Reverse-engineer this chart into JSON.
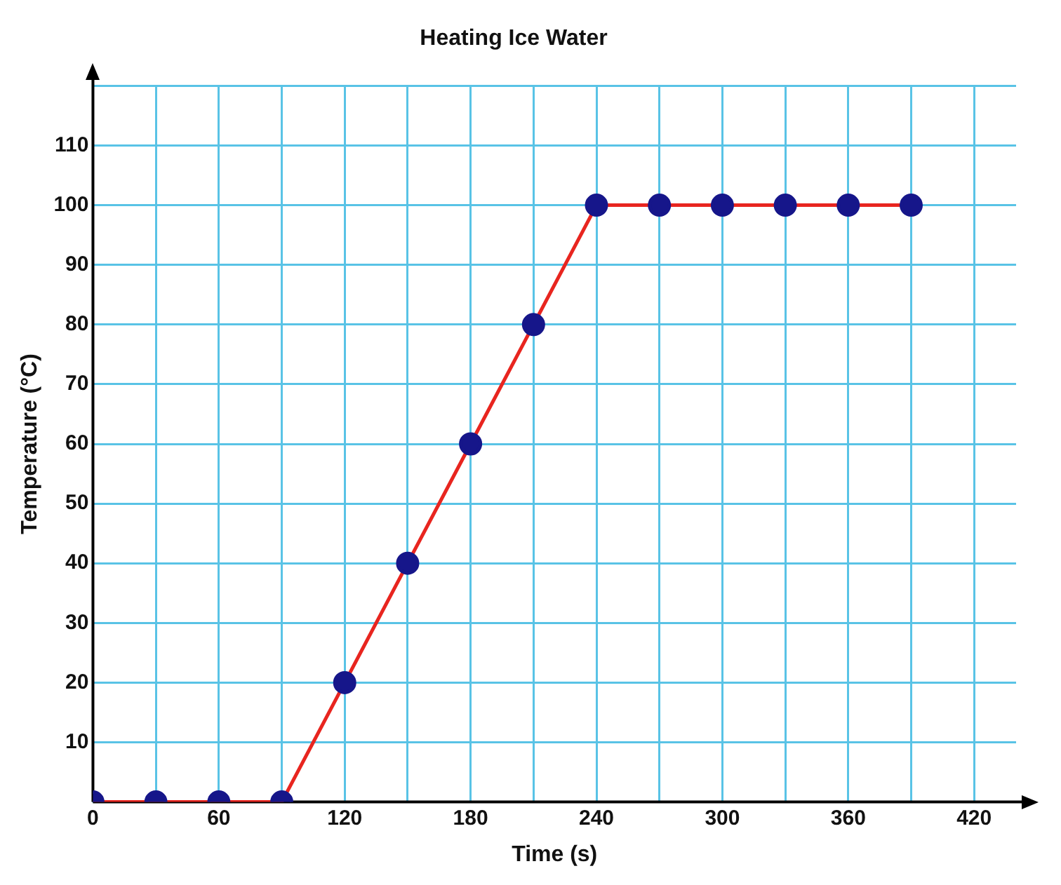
{
  "chart_data": {
    "type": "line",
    "title": "Heating Ice Water",
    "xlabel": "Time (s)",
    "ylabel": "Temperature (°C)",
    "x": [
      0,
      30,
      60,
      90,
      120,
      150,
      180,
      210,
      240,
      270,
      300,
      330,
      360,
      390
    ],
    "series": [
      {
        "color": "#e8251f",
        "values": [
          0,
          0,
          0,
          0,
          20,
          40,
          60,
          80,
          100,
          100,
          100,
          100,
          100,
          100
        ]
      }
    ],
    "marker": "circle",
    "line_style": "solid",
    "grid": true,
    "legend": false,
    "xlim": [
      0,
      440
    ],
    "xticks": [
      0,
      {
        "value": 30,
        "label": null
      },
      60,
      {
        "value": 90,
        "label": null
      },
      120,
      {
        "value": 150,
        "label": null
      },
      180,
      {
        "value": 210,
        "label": null
      },
      240,
      {
        "value": 270,
        "label": null
      },
      300,
      {
        "value": 330,
        "label": null
      },
      360,
      {
        "value": 390,
        "label": null
      },
      420
    ],
    "ylim": [
      0,
      120
    ],
    "yticks": [
      {
        "value": 0,
        "label": null
      },
      10,
      20,
      30,
      40,
      50,
      60,
      70,
      80,
      90,
      100,
      110,
      {
        "value": 120,
        "label": null
      }
    ]
  }
}
